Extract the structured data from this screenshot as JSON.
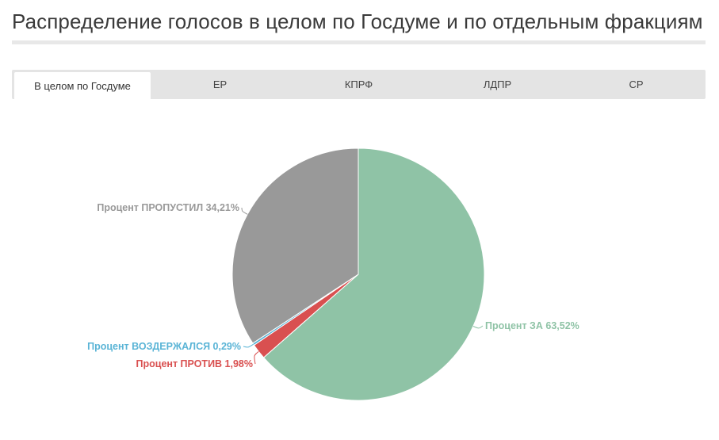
{
  "page": {
    "title": "Распределение голосов в целом по Госдуме и по отдельным фракциям"
  },
  "tabs": [
    {
      "label": "В целом по Госдуме",
      "active": true
    },
    {
      "label": "ЕР",
      "active": false
    },
    {
      "label": "КПРФ",
      "active": false
    },
    {
      "label": "ЛДПР",
      "active": false
    },
    {
      "label": "СР",
      "active": false
    }
  ],
  "chart_data": {
    "type": "pie",
    "slices": [
      {
        "name": "Процент ЗА",
        "value": 63.52,
        "label": "Процент ЗА 63,52%",
        "color": "#8fc3a6"
      },
      {
        "name": "Процент ПРОТИВ",
        "value": 1.98,
        "label": "Процент ПРОТИВ 1,98%",
        "color": "#d95050"
      },
      {
        "name": "Процент ВОЗДЕРЖАЛСЯ",
        "value": 0.29,
        "label": "Процент ВОЗДЕРЖАЛСЯ 0,29%",
        "color": "#5ab4d6"
      },
      {
        "name": "Процент ПРОПУСТИЛ",
        "value": 34.21,
        "label": "Процент ПРОПУСТИЛ 34,21%",
        "color": "#999999"
      }
    ],
    "start_angle_deg": 0,
    "direction": "clockwise"
  }
}
